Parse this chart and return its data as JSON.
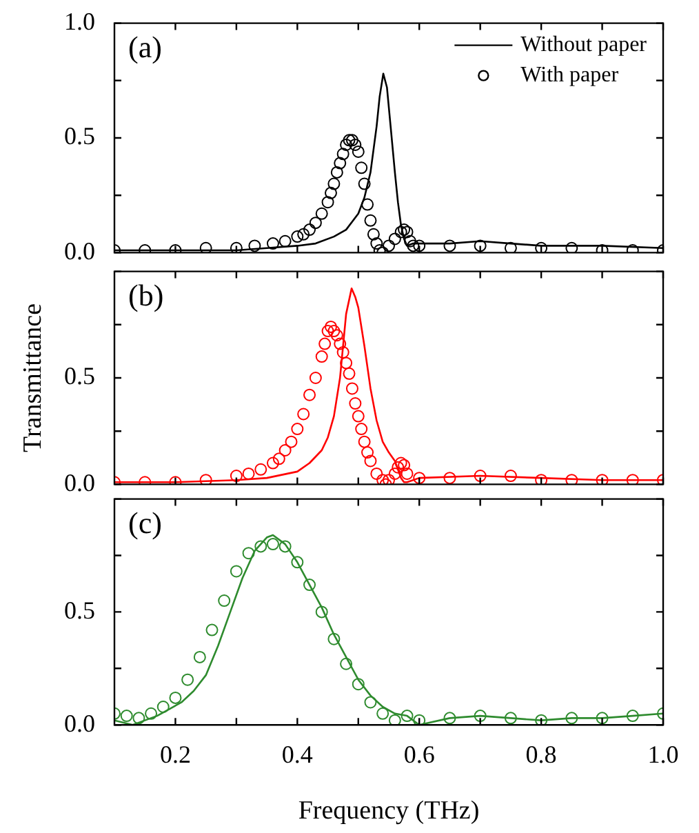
{
  "chart_data": [
    {
      "type": "line",
      "annotations": [
        "(a)"
      ],
      "legend": "top right",
      "tick_labels": "y",
      "xlim": [
        0.1,
        1.0
      ],
      "xticks": [
        {
          "value": 0.2,
          "label": null
        },
        {
          "value": 0.3,
          "label": null
        },
        {
          "value": 0.4,
          "label": null
        },
        {
          "value": 0.5,
          "label": null
        },
        {
          "value": 0.6,
          "label": null
        },
        {
          "value": 0.7,
          "label": null
        },
        {
          "value": 0.8,
          "label": null
        },
        {
          "value": 0.9,
          "label": null
        },
        {
          "value": 1.0,
          "label": null
        }
      ],
      "ylim": [
        0,
        1.0
      ],
      "yticks": [
        {
          "value": 0,
          "label": "0.0"
        },
        {
          "value": 0.25,
          "label": null
        },
        {
          "value": 0.5,
          "label": "0.5"
        },
        {
          "value": 0.75,
          "label": null
        },
        {
          "value": 1.0,
          "label": "1.0"
        }
      ],
      "series": [
        {
          "name": "Without paper",
          "type": "line",
          "marker": "none",
          "line_style": "solid",
          "color": "#000000",
          "x": [
            0.1,
            0.2,
            0.3,
            0.35,
            0.4,
            0.43,
            0.46,
            0.48,
            0.5,
            0.51,
            0.52,
            0.53,
            0.535,
            0.541,
            0.547,
            0.553,
            0.56,
            0.565,
            0.57,
            0.575,
            0.58,
            0.59,
            0.6,
            0.65,
            0.7,
            0.75,
            0.8,
            0.9,
            1.0
          ],
          "values": [
            0.01,
            0.01,
            0.01,
            0.02,
            0.03,
            0.04,
            0.07,
            0.1,
            0.17,
            0.24,
            0.35,
            0.55,
            0.68,
            0.78,
            0.72,
            0.55,
            0.35,
            0.22,
            0.12,
            0.06,
            0.03,
            0.04,
            0.04,
            0.04,
            0.05,
            0.04,
            0.03,
            0.03,
            0.02
          ]
        },
        {
          "name": "With paper",
          "type": "scatter",
          "marker": "circle",
          "color": "#000000",
          "x": [
            0.1,
            0.15,
            0.2,
            0.25,
            0.3,
            0.33,
            0.36,
            0.38,
            0.4,
            0.41,
            0.42,
            0.43,
            0.44,
            0.45,
            0.455,
            0.46,
            0.465,
            0.47,
            0.475,
            0.48,
            0.485,
            0.49,
            0.495,
            0.5,
            0.505,
            0.51,
            0.515,
            0.52,
            0.525,
            0.53,
            0.535,
            0.54,
            0.55,
            0.56,
            0.57,
            0.575,
            0.58,
            0.585,
            0.59,
            0.6,
            0.65,
            0.7,
            0.75,
            0.8,
            0.85,
            0.9,
            0.95,
            1.0
          ],
          "values": [
            0.01,
            0.01,
            0.01,
            0.02,
            0.02,
            0.03,
            0.04,
            0.05,
            0.07,
            0.08,
            0.1,
            0.13,
            0.17,
            0.22,
            0.26,
            0.3,
            0.35,
            0.39,
            0.43,
            0.47,
            0.49,
            0.49,
            0.47,
            0.44,
            0.37,
            0.3,
            0.21,
            0.14,
            0.08,
            0.04,
            0.01,
            0.0,
            0.03,
            0.06,
            0.09,
            0.1,
            0.09,
            0.05,
            0.03,
            0.03,
            0.03,
            0.03,
            0.02,
            0.02,
            0.02,
            0.01,
            0.01,
            0.01
          ]
        }
      ]
    },
    {
      "type": "line",
      "annotations": [
        "(b)"
      ],
      "ylabel": "Transmittance",
      "tick_labels": "y",
      "xlim": [
        0.1,
        1.0
      ],
      "xticks": [
        {
          "value": 0.2,
          "label": null
        },
        {
          "value": 0.3,
          "label": null
        },
        {
          "value": 0.4,
          "label": null
        },
        {
          "value": 0.5,
          "label": null
        },
        {
          "value": 0.6,
          "label": null
        },
        {
          "value": 0.7,
          "label": null
        },
        {
          "value": 0.8,
          "label": null
        },
        {
          "value": 0.9,
          "label": null
        },
        {
          "value": 1.0,
          "label": null
        }
      ],
      "ylim": [
        0,
        1.0
      ],
      "yticks": [
        {
          "value": 0,
          "label": "0.0"
        },
        {
          "value": 0.25,
          "label": null
        },
        {
          "value": 0.5,
          "label": "0.5"
        },
        {
          "value": 0.75,
          "label": null
        },
        {
          "value": 1.0,
          "label": null
        }
      ],
      "series": [
        {
          "type": "line",
          "marker": "none",
          "line_style": "solid",
          "color": "#ff0000",
          "x": [
            0.1,
            0.2,
            0.3,
            0.35,
            0.4,
            0.42,
            0.44,
            0.45,
            0.46,
            0.47,
            0.475,
            0.48,
            0.489,
            0.495,
            0.5,
            0.51,
            0.52,
            0.53,
            0.54,
            0.55,
            0.56,
            0.565,
            0.57,
            0.575,
            0.58,
            0.6,
            0.7,
            0.8,
            0.9,
            1.0
          ],
          "values": [
            0.01,
            0.01,
            0.02,
            0.03,
            0.06,
            0.1,
            0.16,
            0.22,
            0.32,
            0.5,
            0.65,
            0.8,
            0.92,
            0.88,
            0.83,
            0.65,
            0.45,
            0.3,
            0.2,
            0.15,
            0.11,
            0.07,
            0.03,
            0.01,
            0.01,
            0.03,
            0.04,
            0.03,
            0.02,
            0.02
          ]
        },
        {
          "type": "scatter",
          "marker": "circle",
          "color": "#ff0000",
          "x": [
            0.1,
            0.15,
            0.2,
            0.25,
            0.3,
            0.32,
            0.34,
            0.36,
            0.37,
            0.38,
            0.39,
            0.4,
            0.41,
            0.42,
            0.43,
            0.44,
            0.445,
            0.45,
            0.455,
            0.46,
            0.465,
            0.47,
            0.475,
            0.48,
            0.485,
            0.49,
            0.495,
            0.5,
            0.505,
            0.51,
            0.515,
            0.52,
            0.53,
            0.54,
            0.545,
            0.55,
            0.56,
            0.565,
            0.57,
            0.575,
            0.58,
            0.6,
            0.65,
            0.7,
            0.75,
            0.8,
            0.85,
            0.9,
            0.95,
            1.0
          ],
          "values": [
            0.01,
            0.01,
            0.01,
            0.02,
            0.04,
            0.05,
            0.07,
            0.1,
            0.12,
            0.16,
            0.2,
            0.26,
            0.33,
            0.42,
            0.5,
            0.6,
            0.66,
            0.72,
            0.74,
            0.72,
            0.7,
            0.66,
            0.62,
            0.57,
            0.52,
            0.45,
            0.38,
            0.32,
            0.26,
            0.2,
            0.15,
            0.11,
            0.05,
            0.02,
            0.0,
            0.02,
            0.05,
            0.08,
            0.1,
            0.09,
            0.05,
            0.03,
            0.03,
            0.04,
            0.04,
            0.02,
            0.02,
            0.02,
            0.02,
            0.02
          ]
        }
      ]
    },
    {
      "type": "line",
      "annotations": [
        "(c)"
      ],
      "xlabel": "Frequency (THz)",
      "xlim": [
        0.1,
        1.0
      ],
      "xticks": [
        {
          "value": 0.2,
          "label": "0.2"
        },
        {
          "value": 0.3,
          "label": null
        },
        {
          "value": 0.4,
          "label": "0.4"
        },
        {
          "value": 0.5,
          "label": null
        },
        {
          "value": 0.6,
          "label": "0.6"
        },
        {
          "value": 0.7,
          "label": null
        },
        {
          "value": 0.8,
          "label": "0.8"
        },
        {
          "value": 0.9,
          "label": null
        },
        {
          "value": 1.0,
          "label": "1.0"
        }
      ],
      "ylim": [
        0,
        1.0
      ],
      "yticks": [
        {
          "value": 0,
          "label": "0.0"
        },
        {
          "value": 0.25,
          "label": null
        },
        {
          "value": 0.5,
          "label": "0.5"
        },
        {
          "value": 0.75,
          "label": null
        },
        {
          "value": 1.0,
          "label": null
        }
      ],
      "series": [
        {
          "type": "line",
          "marker": "none",
          "line_style": "solid",
          "color": "#2e8b2e",
          "x": [
            0.1,
            0.13,
            0.15,
            0.17,
            0.19,
            0.21,
            0.23,
            0.25,
            0.27,
            0.29,
            0.31,
            0.33,
            0.35,
            0.36,
            0.38,
            0.4,
            0.42,
            0.44,
            0.46,
            0.48,
            0.5,
            0.52,
            0.54,
            0.56,
            0.58,
            0.6,
            0.65,
            0.7,
            0.75,
            0.8,
            0.85,
            0.9,
            0.95,
            1.0
          ],
          "values": [
            0.02,
            0.0,
            0.02,
            0.04,
            0.07,
            0.1,
            0.15,
            0.22,
            0.35,
            0.5,
            0.65,
            0.77,
            0.83,
            0.84,
            0.8,
            0.72,
            0.62,
            0.52,
            0.4,
            0.3,
            0.2,
            0.13,
            0.08,
            0.05,
            0.04,
            0.0,
            0.03,
            0.04,
            0.03,
            0.02,
            0.03,
            0.03,
            0.04,
            0.05
          ]
        },
        {
          "type": "scatter",
          "marker": "circle",
          "color": "#2e8b2e",
          "x": [
            0.1,
            0.12,
            0.14,
            0.16,
            0.18,
            0.2,
            0.22,
            0.24,
            0.26,
            0.28,
            0.3,
            0.32,
            0.34,
            0.36,
            0.38,
            0.4,
            0.42,
            0.44,
            0.46,
            0.48,
            0.5,
            0.52,
            0.54,
            0.56,
            0.58,
            0.6,
            0.65,
            0.7,
            0.75,
            0.8,
            0.85,
            0.9,
            0.95,
            1.0
          ],
          "values": [
            0.05,
            0.04,
            0.03,
            0.05,
            0.08,
            0.12,
            0.2,
            0.3,
            0.42,
            0.55,
            0.68,
            0.76,
            0.79,
            0.8,
            0.79,
            0.72,
            0.62,
            0.5,
            0.38,
            0.27,
            0.18,
            0.1,
            0.05,
            0.02,
            0.04,
            0.02,
            0.03,
            0.04,
            0.03,
            0.02,
            0.03,
            0.03,
            0.04,
            0.05
          ]
        }
      ]
    }
  ]
}
